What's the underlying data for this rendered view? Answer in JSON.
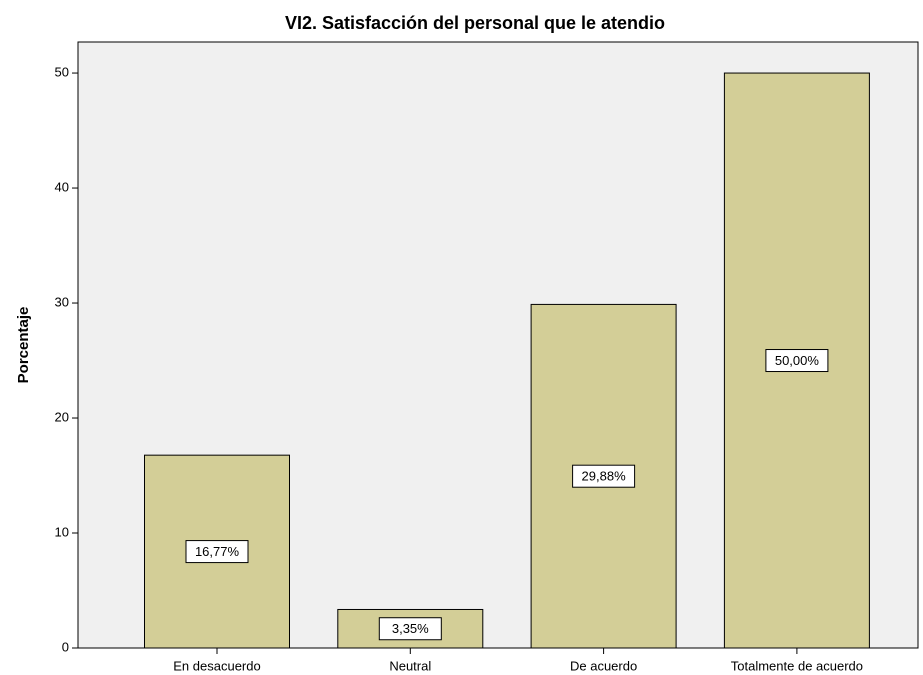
{
  "chart_data": {
    "type": "bar",
    "title": "VI2. Satisfacción del personal que le atendio",
    "ylabel": "Porcentaje",
    "categories": [
      "En desacuerdo",
      "Neutral",
      "De acuerdo",
      "Totalmente de acuerdo"
    ],
    "values": [
      16.77,
      3.35,
      29.88,
      50.0
    ],
    "value_labels": [
      "16,77%",
      "3,35%",
      "29,88%",
      "50,00%"
    ],
    "color": "#d3ce97",
    "ylim": [
      0,
      52.7
    ],
    "yticks": [
      0,
      10,
      20,
      30,
      40,
      50
    ],
    "grid": false
  }
}
